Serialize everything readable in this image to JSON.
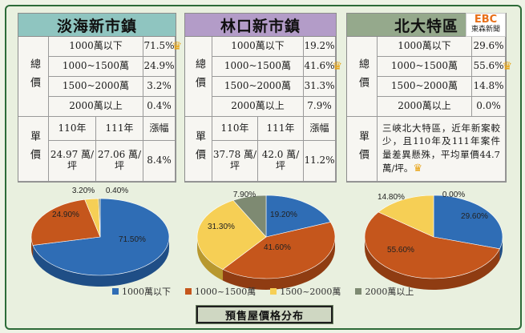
{
  "logo": {
    "line1": "EBC",
    "line2": "東森新聞"
  },
  "crown": "♛",
  "panels": [
    {
      "title": "淡海新市鎮",
      "total_label": "總價",
      "unit_label": "單價",
      "rows": [
        {
          "label": "1000萬以下",
          "value": "71.5%",
          "crown": true
        },
        {
          "label": "1000~1500萬",
          "value": "24.9%",
          "crown": false
        },
        {
          "label": "1500~2000萬",
          "value": "3.2%",
          "crown": false
        },
        {
          "label": "2000萬以上",
          "value": "0.4%",
          "crown": false
        }
      ],
      "unit_headers": [
        "110年",
        "111年",
        "漲幅"
      ],
      "unit_values": [
        "24.97 萬/坪",
        "27.06 萬/坪",
        "8.4%"
      ]
    },
    {
      "title": "林口新市鎮",
      "total_label": "總價",
      "unit_label": "單價",
      "rows": [
        {
          "label": "1000萬以下",
          "value": "19.2%",
          "crown": false
        },
        {
          "label": "1000~1500萬",
          "value": "41.6%",
          "crown": true
        },
        {
          "label": "1500~2000萬",
          "value": "31.3%",
          "crown": false
        },
        {
          "label": "2000萬以上",
          "value": "7.9%",
          "crown": false
        }
      ],
      "unit_headers": [
        "110年",
        "111年",
        "漲幅"
      ],
      "unit_values": [
        "37.78 萬/坪",
        "42.0 萬/坪",
        "11.2%"
      ]
    },
    {
      "title": "北大特區",
      "total_label": "總價",
      "unit_label": "單價",
      "rows": [
        {
          "label": "1000萬以下",
          "value": "29.6%",
          "crown": false
        },
        {
          "label": "1000~1500萬",
          "value": "55.6%",
          "crown": true
        },
        {
          "label": "1500~2000萬",
          "value": "14.8%",
          "crown": false
        },
        {
          "label": "2000萬以上",
          "value": "0.0%",
          "crown": false
        }
      ],
      "unit_note": "三峽北大特區，近年新案較少，且110年及111年案件量差異懸殊，平均單價44.7萬/坪。"
    }
  ],
  "colors": {
    "blue": "#2f6db5",
    "orange": "#c5561c",
    "yellow": "#f6cf55",
    "gray": "#7e8a72"
  },
  "chart_data": [
    {
      "type": "pie",
      "title": "",
      "categories": [
        "1000萬以下",
        "1000~1500萬",
        "1500~2000萬",
        "2000萬以上"
      ],
      "values": [
        71.5,
        24.9,
        3.2,
        0.4
      ],
      "labels": [
        "71.50%",
        "24.90%",
        "3.20%",
        "0.40%"
      ]
    },
    {
      "type": "pie",
      "title": "",
      "categories": [
        "1000萬以下",
        "1000~1500萬",
        "1500~2000萬",
        "2000萬以上"
      ],
      "values": [
        19.2,
        41.6,
        31.3,
        7.9
      ],
      "labels": [
        "19.20%",
        "41.60%",
        "31.30%",
        "7.90%"
      ]
    },
    {
      "type": "pie",
      "title": "",
      "categories": [
        "1000萬以下",
        "1000~1500萬",
        "1500~2000萬",
        "2000萬以上"
      ],
      "values": [
        29.6,
        55.6,
        14.8,
        0.0
      ],
      "labels": [
        "29.60%",
        "55.60%",
        "14.80%",
        "0.00%"
      ]
    }
  ],
  "legend": [
    "1000萬以下",
    "1000~1500萬",
    "1500~2000萬",
    "2000萬以上"
  ],
  "footer_title": "預售屋價格分布"
}
